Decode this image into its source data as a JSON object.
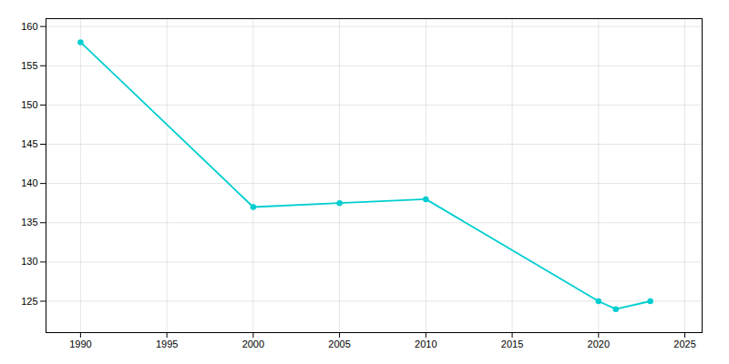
{
  "chart_data": {
    "type": "line",
    "x": [
      1990,
      2000,
      2005,
      2010,
      2020,
      2021,
      2023
    ],
    "values": [
      158,
      137,
      137.5,
      138,
      125,
      124,
      125
    ],
    "color": "#00CED1",
    "marker": "circle",
    "xlim": [
      1988,
      2026
    ],
    "ylim": [
      121,
      161
    ],
    "xticks": [
      1990,
      1995,
      2000,
      2005,
      2010,
      2015,
      2020,
      2025
    ],
    "yticks": [
      125,
      130,
      135,
      140,
      145,
      150,
      155,
      160
    ],
    "grid": true
  }
}
